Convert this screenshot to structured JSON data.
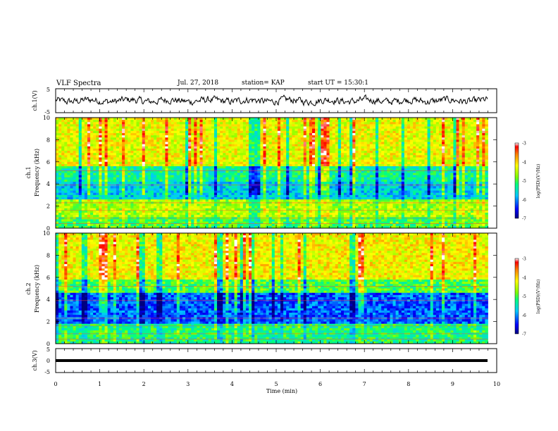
{
  "header": {
    "title": "VLF Spectra",
    "date": "Jul. 27, 2018",
    "station": "station= KAP",
    "start_ut": "start UT = 15:30:1"
  },
  "chart_data": [
    {
      "type": "line",
      "panel": "ch1-waveform",
      "ylabel": "ch.1(V)",
      "ylim": [
        -5,
        5
      ],
      "yticks": [
        5,
        -5
      ],
      "xlim": [
        0,
        10
      ],
      "series": [
        {
          "description_values_volts_amplitude_range": [
            -1.8,
            1.8
          ]
        }
      ]
    },
    {
      "type": "heatmap",
      "panel": "ch1-spectrogram",
      "ylabel_top": "ch.1",
      "ylabel": "Frequency (kHz)",
      "ylim": [
        0,
        10
      ],
      "yticks": [
        "10",
        "8",
        "6",
        "4",
        "2",
        "0"
      ],
      "xlim": [
        0,
        10
      ],
      "colorbar": {
        "label": "log(PSD)(V²/Hz)",
        "range": [
          -7,
          -3
        ],
        "ticks": [
          "-3",
          "-4",
          "-5",
          "-6",
          "-7"
        ]
      }
    },
    {
      "type": "heatmap",
      "panel": "ch2-spectrogram",
      "ylabel_top": "ch.2",
      "ylabel": "Frequency (kHz)",
      "ylim": [
        0,
        10
      ],
      "yticks": [
        "10",
        "8",
        "6",
        "4",
        "2",
        "0"
      ],
      "xlim": [
        0,
        10
      ],
      "colorbar": {
        "label": "log(PSD)(V²/Hz)",
        "range": [
          -7,
          -3
        ],
        "ticks": [
          "-3",
          "-4",
          "-5",
          "-6",
          "-7"
        ]
      }
    },
    {
      "type": "line",
      "panel": "ch3-waveform",
      "ylabel": "ch.3(V)",
      "ylim": [
        -5,
        5
      ],
      "yticks": [
        "5",
        "0",
        "-5"
      ],
      "xlim": [
        0,
        10
      ],
      "series": [
        {
          "constant_value_volts": 0.0
        }
      ]
    }
  ],
  "xaxis": {
    "label": "Time (min)",
    "ticks": [
      "0",
      "1",
      "2",
      "3",
      "4",
      "5",
      "6",
      "7",
      "8",
      "9",
      "10"
    ],
    "data_end_min": 9.8
  }
}
